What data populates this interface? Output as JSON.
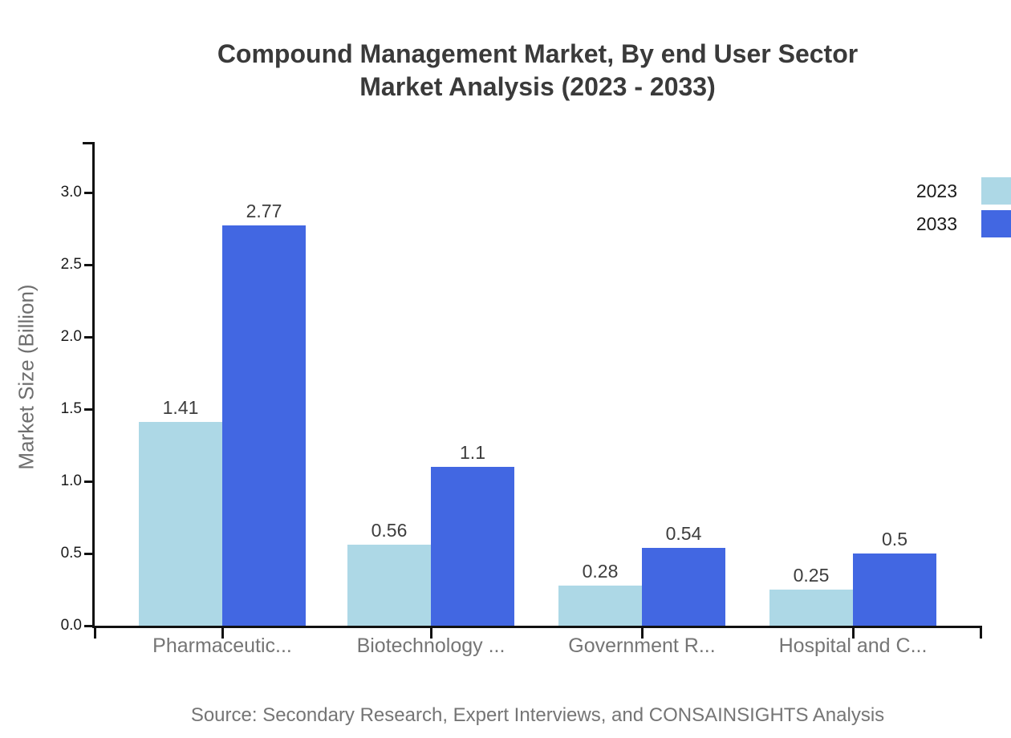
{
  "chart_data": {
    "type": "bar",
    "title": "Compound Management Market, By end User Sector Market Analysis (2023 - 2033)",
    "title_line1": "Compound Management Market, By end User Sector",
    "title_line2": "Market Analysis (2023 - 2033)",
    "ylabel": "Market Size (Billion)",
    "xlabel": "",
    "categories": [
      "Pharmaceutic...",
      "Biotechnology ...",
      "Government R...",
      "Hospital and C..."
    ],
    "series": [
      {
        "name": "2023",
        "color": "#ADD8E6",
        "values": [
          1.41,
          0.56,
          0.28,
          0.25
        ]
      },
      {
        "name": "2033",
        "color": "#4267E2",
        "values": [
          2.77,
          1.1,
          0.54,
          0.5
        ]
      }
    ],
    "value_labels": {
      "2023": [
        "1.41",
        "0.56",
        "0.28",
        "0.25"
      ],
      "2033": [
        "2.77",
        "1.1",
        "0.54",
        "0.5"
      ]
    },
    "yticks": [
      "0.0",
      "0.5",
      "1.0",
      "1.5",
      "2.0",
      "2.5",
      "3.0"
    ],
    "ylim": [
      0,
      3.35
    ],
    "grid": false,
    "legend_position": "top-right",
    "source": "Source: Secondary Research, Expert Interviews, and CONSAINSIGHTS Analysis",
    "colors": {
      "series_2023": "#ADD8E6",
      "series_2033": "#4267E2",
      "background": "#ffffff",
      "title_text": "#3a3a3a",
      "axis_line": "#111111",
      "ytick_label": "#1a1a1a",
      "category_label": "#757575",
      "value_label": "#3d3d3d",
      "axis_title": "#6e6e6e",
      "source_text": "#757575"
    }
  }
}
